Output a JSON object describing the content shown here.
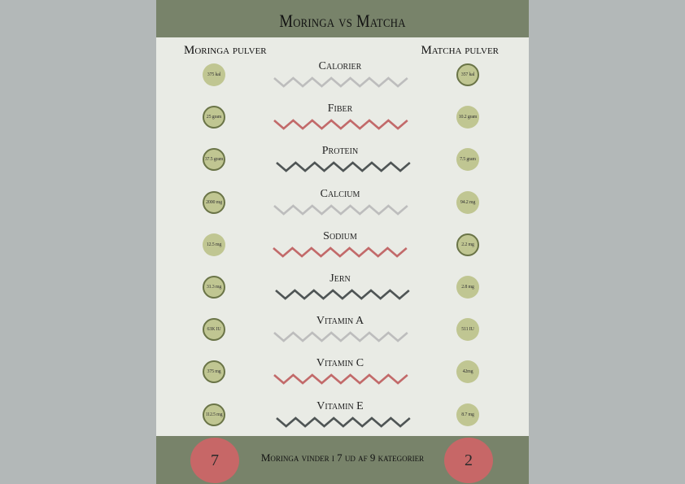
{
  "title": "Moringa vs Matcha",
  "left_column_header": "Moringa pulver",
  "right_column_header": "Matcha pulver",
  "colors": {
    "header_green": "#78836a",
    "circle_fill": "#c0c692",
    "winner_ring": "#6a7447",
    "zigzag_gray": "#bdbdbd",
    "zigzag_red": "#c26a6a",
    "zigzag_dark": "#4f5555",
    "score_red": "#c76767"
  },
  "rows": [
    {
      "category": "Calorier",
      "moringa": "375 kal",
      "matcha": "357 kal",
      "winner": "matcha",
      "zigzag": "gray"
    },
    {
      "category": "Fiber",
      "moringa": "25 gram",
      "matcha": "10.2 gram",
      "winner": "moringa",
      "zigzag": "red"
    },
    {
      "category": "Protein",
      "moringa": "37.5 gram",
      "matcha": "7.5 gram",
      "winner": "moringa",
      "zigzag": "dark"
    },
    {
      "category": "Calcium",
      "moringa": "2000 mg",
      "matcha": "94.2 mg",
      "winner": "moringa",
      "zigzag": "gray"
    },
    {
      "category": "Sodium",
      "moringa": "12.5 mg",
      "matcha": "2.2 mg",
      "winner": "matcha",
      "zigzag": "red"
    },
    {
      "category": "Jern",
      "moringa": "31.3 mg",
      "matcha": "2.8 mg",
      "winner": "moringa",
      "zigzag": "dark"
    },
    {
      "category": "Vitamin A",
      "moringa": "63K IU",
      "matcha": "511 IU",
      "winner": "moringa",
      "zigzag": "gray"
    },
    {
      "category": "Vitamin C",
      "moringa": "375 mg",
      "matcha": "42mg",
      "winner": "moringa",
      "zigzag": "red"
    },
    {
      "category": "Vitamin E",
      "moringa": "112.5 mg",
      "matcha": "8.7 mg",
      "winner": "moringa",
      "zigzag": "dark"
    }
  ],
  "footer": {
    "moringa_score": "7",
    "matcha_score": "2",
    "text": "Moringa vinder i 7 ud af 9 kategorier"
  }
}
